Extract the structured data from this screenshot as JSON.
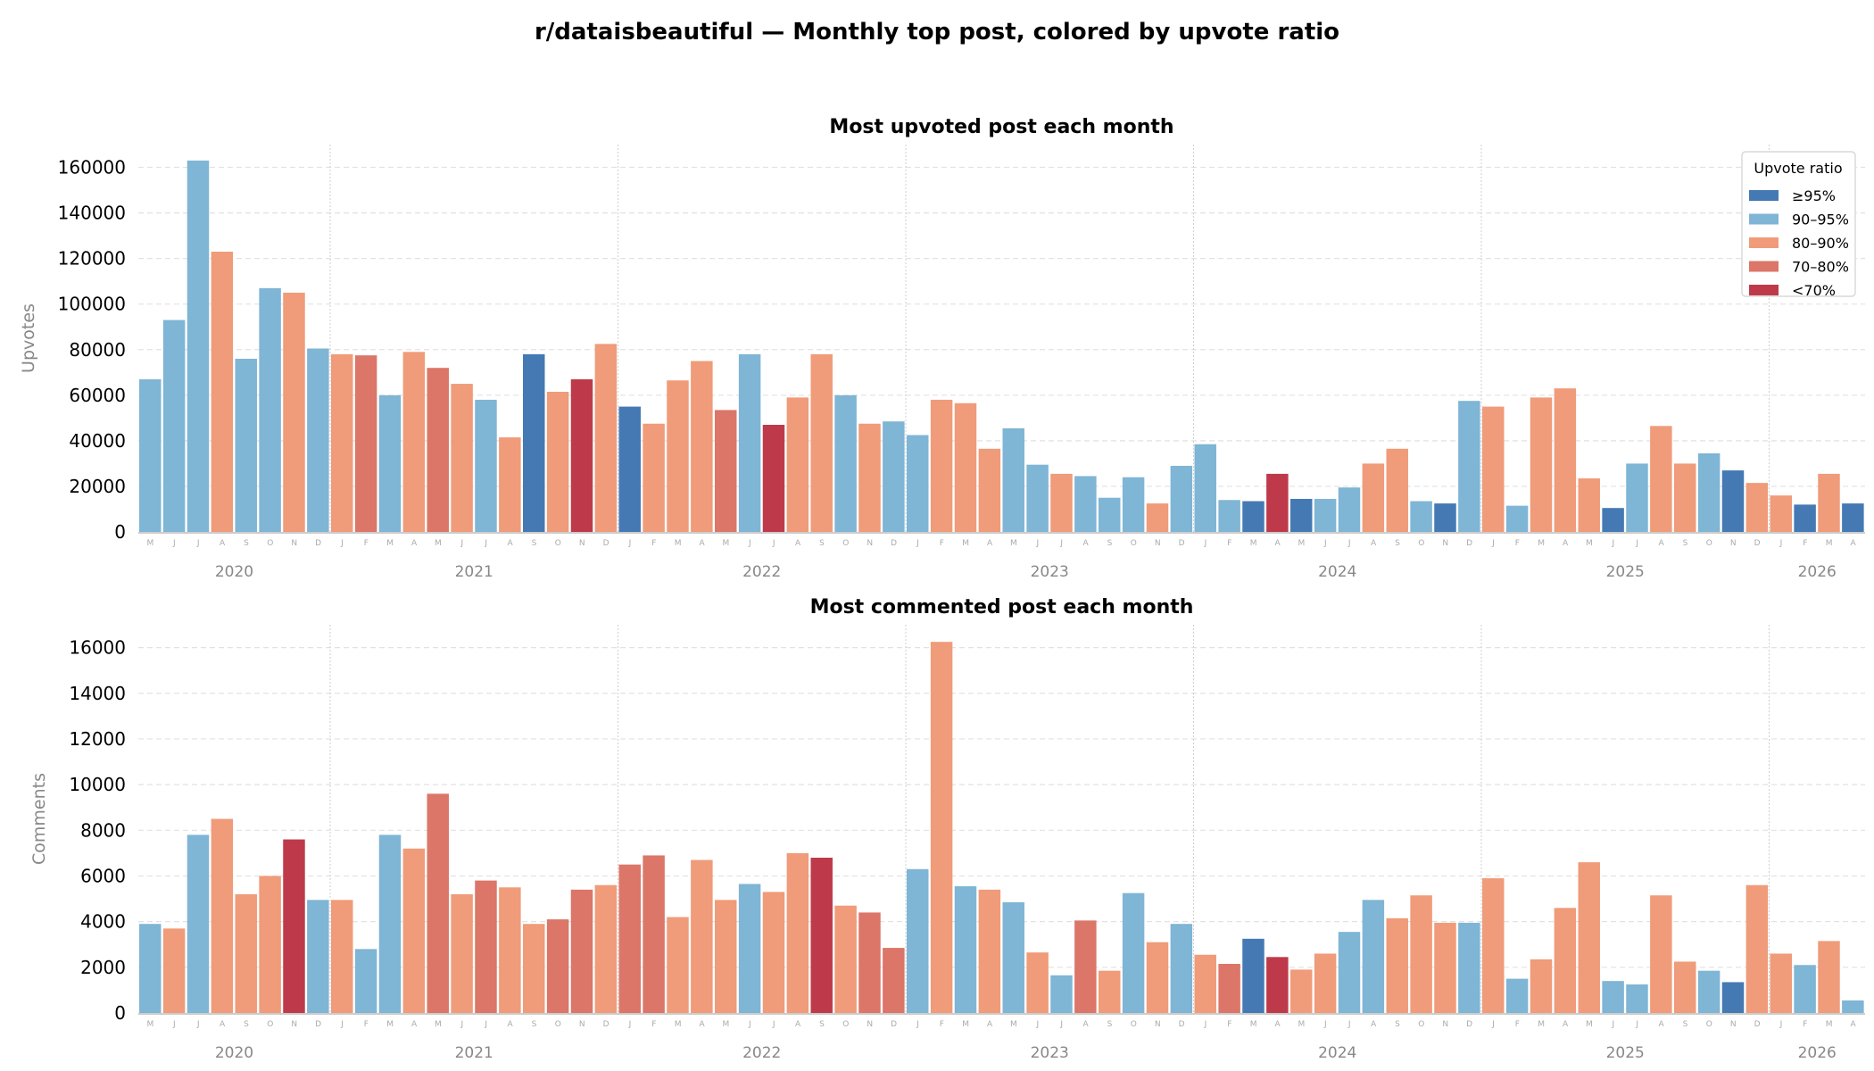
{
  "title": "r/dataisbeautiful — Monthly top post, colored by upvote ratio",
  "legend": {
    "title": "Upvote ratio",
    "placement": "top-right",
    "items": [
      {
        "label": "≥95%",
        "color": "#4479b4"
      },
      {
        "label": "90–95%",
        "color": "#7fb5d5"
      },
      {
        "label": "80–90%",
        "color": "#f09b79"
      },
      {
        "label": "70–80%",
        "color": "#db7668"
      },
      {
        "label": "<70%",
        "color": "#be3a4a"
      }
    ]
  },
  "chart_data": [
    {
      "type": "bar",
      "title": "Most upvoted post each month",
      "ylabel": "Upvotes",
      "xlabel": "",
      "ylim": [
        0,
        170000
      ],
      "yticks": [
        0,
        20000,
        40000,
        60000,
        80000,
        100000,
        120000,
        140000,
        160000
      ],
      "grid": true,
      "month_labels": [
        "M",
        "J",
        "J",
        "A",
        "S",
        "O",
        "N",
        "D",
        "J",
        "F",
        "M",
        "A",
        "M",
        "J",
        "J",
        "A",
        "S",
        "O",
        "N",
        "D",
        "J",
        "F",
        "M",
        "A",
        "M",
        "J",
        "J",
        "A",
        "S",
        "O",
        "N",
        "D",
        "J",
        "F",
        "M",
        "A",
        "M",
        "J",
        "J",
        "A",
        "S",
        "O",
        "N",
        "D",
        "J",
        "F",
        "M",
        "A",
        "M",
        "J",
        "J",
        "A",
        "S",
        "O",
        "N",
        "D",
        "J",
        "F",
        "M",
        "A",
        "M",
        "J",
        "J",
        "A",
        "S",
        "O",
        "N",
        "D",
        "J",
        "F",
        "M",
        "A"
      ],
      "years": [
        {
          "label": "2020",
          "months": 8
        },
        {
          "label": "2021",
          "months": 12
        },
        {
          "label": "2022",
          "months": 12
        },
        {
          "label": "2023",
          "months": 12
        },
        {
          "label": "2024",
          "months": 12
        },
        {
          "label": "2025",
          "months": 12
        },
        {
          "label": "2026",
          "months": 4
        }
      ],
      "values": [
        67000,
        93000,
        163000,
        123000,
        76000,
        107000,
        105000,
        80500,
        78000,
        77500,
        60000,
        79000,
        72000,
        65000,
        58000,
        41500,
        78000,
        61500,
        67000,
        82500,
        55000,
        47500,
        66500,
        75000,
        53500,
        78000,
        47000,
        59000,
        78000,
        60000,
        47500,
        48500,
        42500,
        58000,
        56500,
        36500,
        45500,
        29500,
        25500,
        24500,
        15000,
        24000,
        12500,
        29000,
        38500,
        14000,
        13500,
        25500,
        14500,
        14500,
        19500,
        30000,
        36500,
        13500,
        12500,
        57500,
        55000,
        11500,
        59000,
        63000,
        23500,
        10500,
        30000,
        46500,
        30000,
        34500,
        27000,
        21500,
        16000,
        12000,
        25500,
        12500
      ],
      "ratio_bin": [
        1,
        1,
        1,
        2,
        1,
        1,
        2,
        1,
        2,
        3,
        1,
        2,
        3,
        2,
        1,
        2,
        0,
        2,
        4,
        2,
        0,
        2,
        2,
        2,
        3,
        1,
        4,
        2,
        2,
        1,
        2,
        1,
        1,
        2,
        2,
        2,
        1,
        1,
        2,
        1,
        1,
        1,
        2,
        1,
        1,
        1,
        0,
        4,
        0,
        1,
        1,
        2,
        2,
        1,
        0,
        1,
        2,
        1,
        2,
        2,
        2,
        0,
        1,
        2,
        2,
        1,
        0,
        2,
        2,
        0,
        2,
        0
      ]
    },
    {
      "type": "bar",
      "title": "Most commented post each month",
      "ylabel": "Comments",
      "xlabel": "",
      "ylim": [
        0,
        17000
      ],
      "yticks": [
        0,
        2000,
        4000,
        6000,
        8000,
        10000,
        12000,
        14000,
        16000
      ],
      "grid": true,
      "month_labels": [
        "M",
        "J",
        "J",
        "A",
        "S",
        "O",
        "N",
        "D",
        "J",
        "F",
        "M",
        "A",
        "M",
        "J",
        "J",
        "A",
        "S",
        "O",
        "N",
        "D",
        "J",
        "F",
        "M",
        "A",
        "M",
        "J",
        "J",
        "A",
        "S",
        "O",
        "N",
        "D",
        "J",
        "F",
        "M",
        "A",
        "M",
        "J",
        "J",
        "A",
        "S",
        "O",
        "N",
        "D",
        "J",
        "F",
        "M",
        "A",
        "M",
        "J",
        "J",
        "A",
        "S",
        "O",
        "N",
        "D",
        "J",
        "F",
        "M",
        "A",
        "M",
        "J",
        "J",
        "A",
        "S",
        "O",
        "N",
        "D",
        "J",
        "F",
        "M",
        "A"
      ],
      "years": [
        {
          "label": "2020",
          "months": 8
        },
        {
          "label": "2021",
          "months": 12
        },
        {
          "label": "2022",
          "months": 12
        },
        {
          "label": "2023",
          "months": 12
        },
        {
          "label": "2024",
          "months": 12
        },
        {
          "label": "2025",
          "months": 12
        },
        {
          "label": "2026",
          "months": 4
        }
      ],
      "values": [
        3900,
        3700,
        7800,
        8500,
        5200,
        6000,
        7600,
        4950,
        4950,
        2800,
        7800,
        7200,
        9600,
        5200,
        5800,
        5500,
        3900,
        4100,
        5400,
        5600,
        6500,
        6900,
        4200,
        6700,
        4950,
        5650,
        5300,
        7000,
        6800,
        4700,
        4400,
        2850,
        6300,
        16250,
        5550,
        5400,
        4850,
        2650,
        1650,
        4050,
        1850,
        5250,
        3100,
        3900,
        2550,
        2150,
        3250,
        2450,
        1900,
        2600,
        3550,
        4950,
        4150,
        5150,
        3950,
        3950,
        5900,
        1500,
        2350,
        4600,
        6600,
        1400,
        1250,
        5150,
        2250,
        1850,
        1350,
        5600,
        2600,
        2100,
        3150,
        550
      ],
      "ratio_bin": [
        1,
        2,
        1,
        2,
        2,
        2,
        4,
        1,
        2,
        1,
        1,
        2,
        3,
        2,
        3,
        2,
        2,
        3,
        3,
        2,
        3,
        3,
        2,
        2,
        2,
        1,
        2,
        2,
        4,
        2,
        3,
        3,
        1,
        2,
        1,
        2,
        1,
        2,
        1,
        3,
        2,
        1,
        2,
        1,
        2,
        3,
        0,
        4,
        2,
        2,
        1,
        1,
        2,
        2,
        2,
        1,
        2,
        1,
        2,
        2,
        2,
        1,
        1,
        2,
        2,
        1,
        0,
        2,
        2,
        1,
        2,
        1
      ]
    }
  ]
}
